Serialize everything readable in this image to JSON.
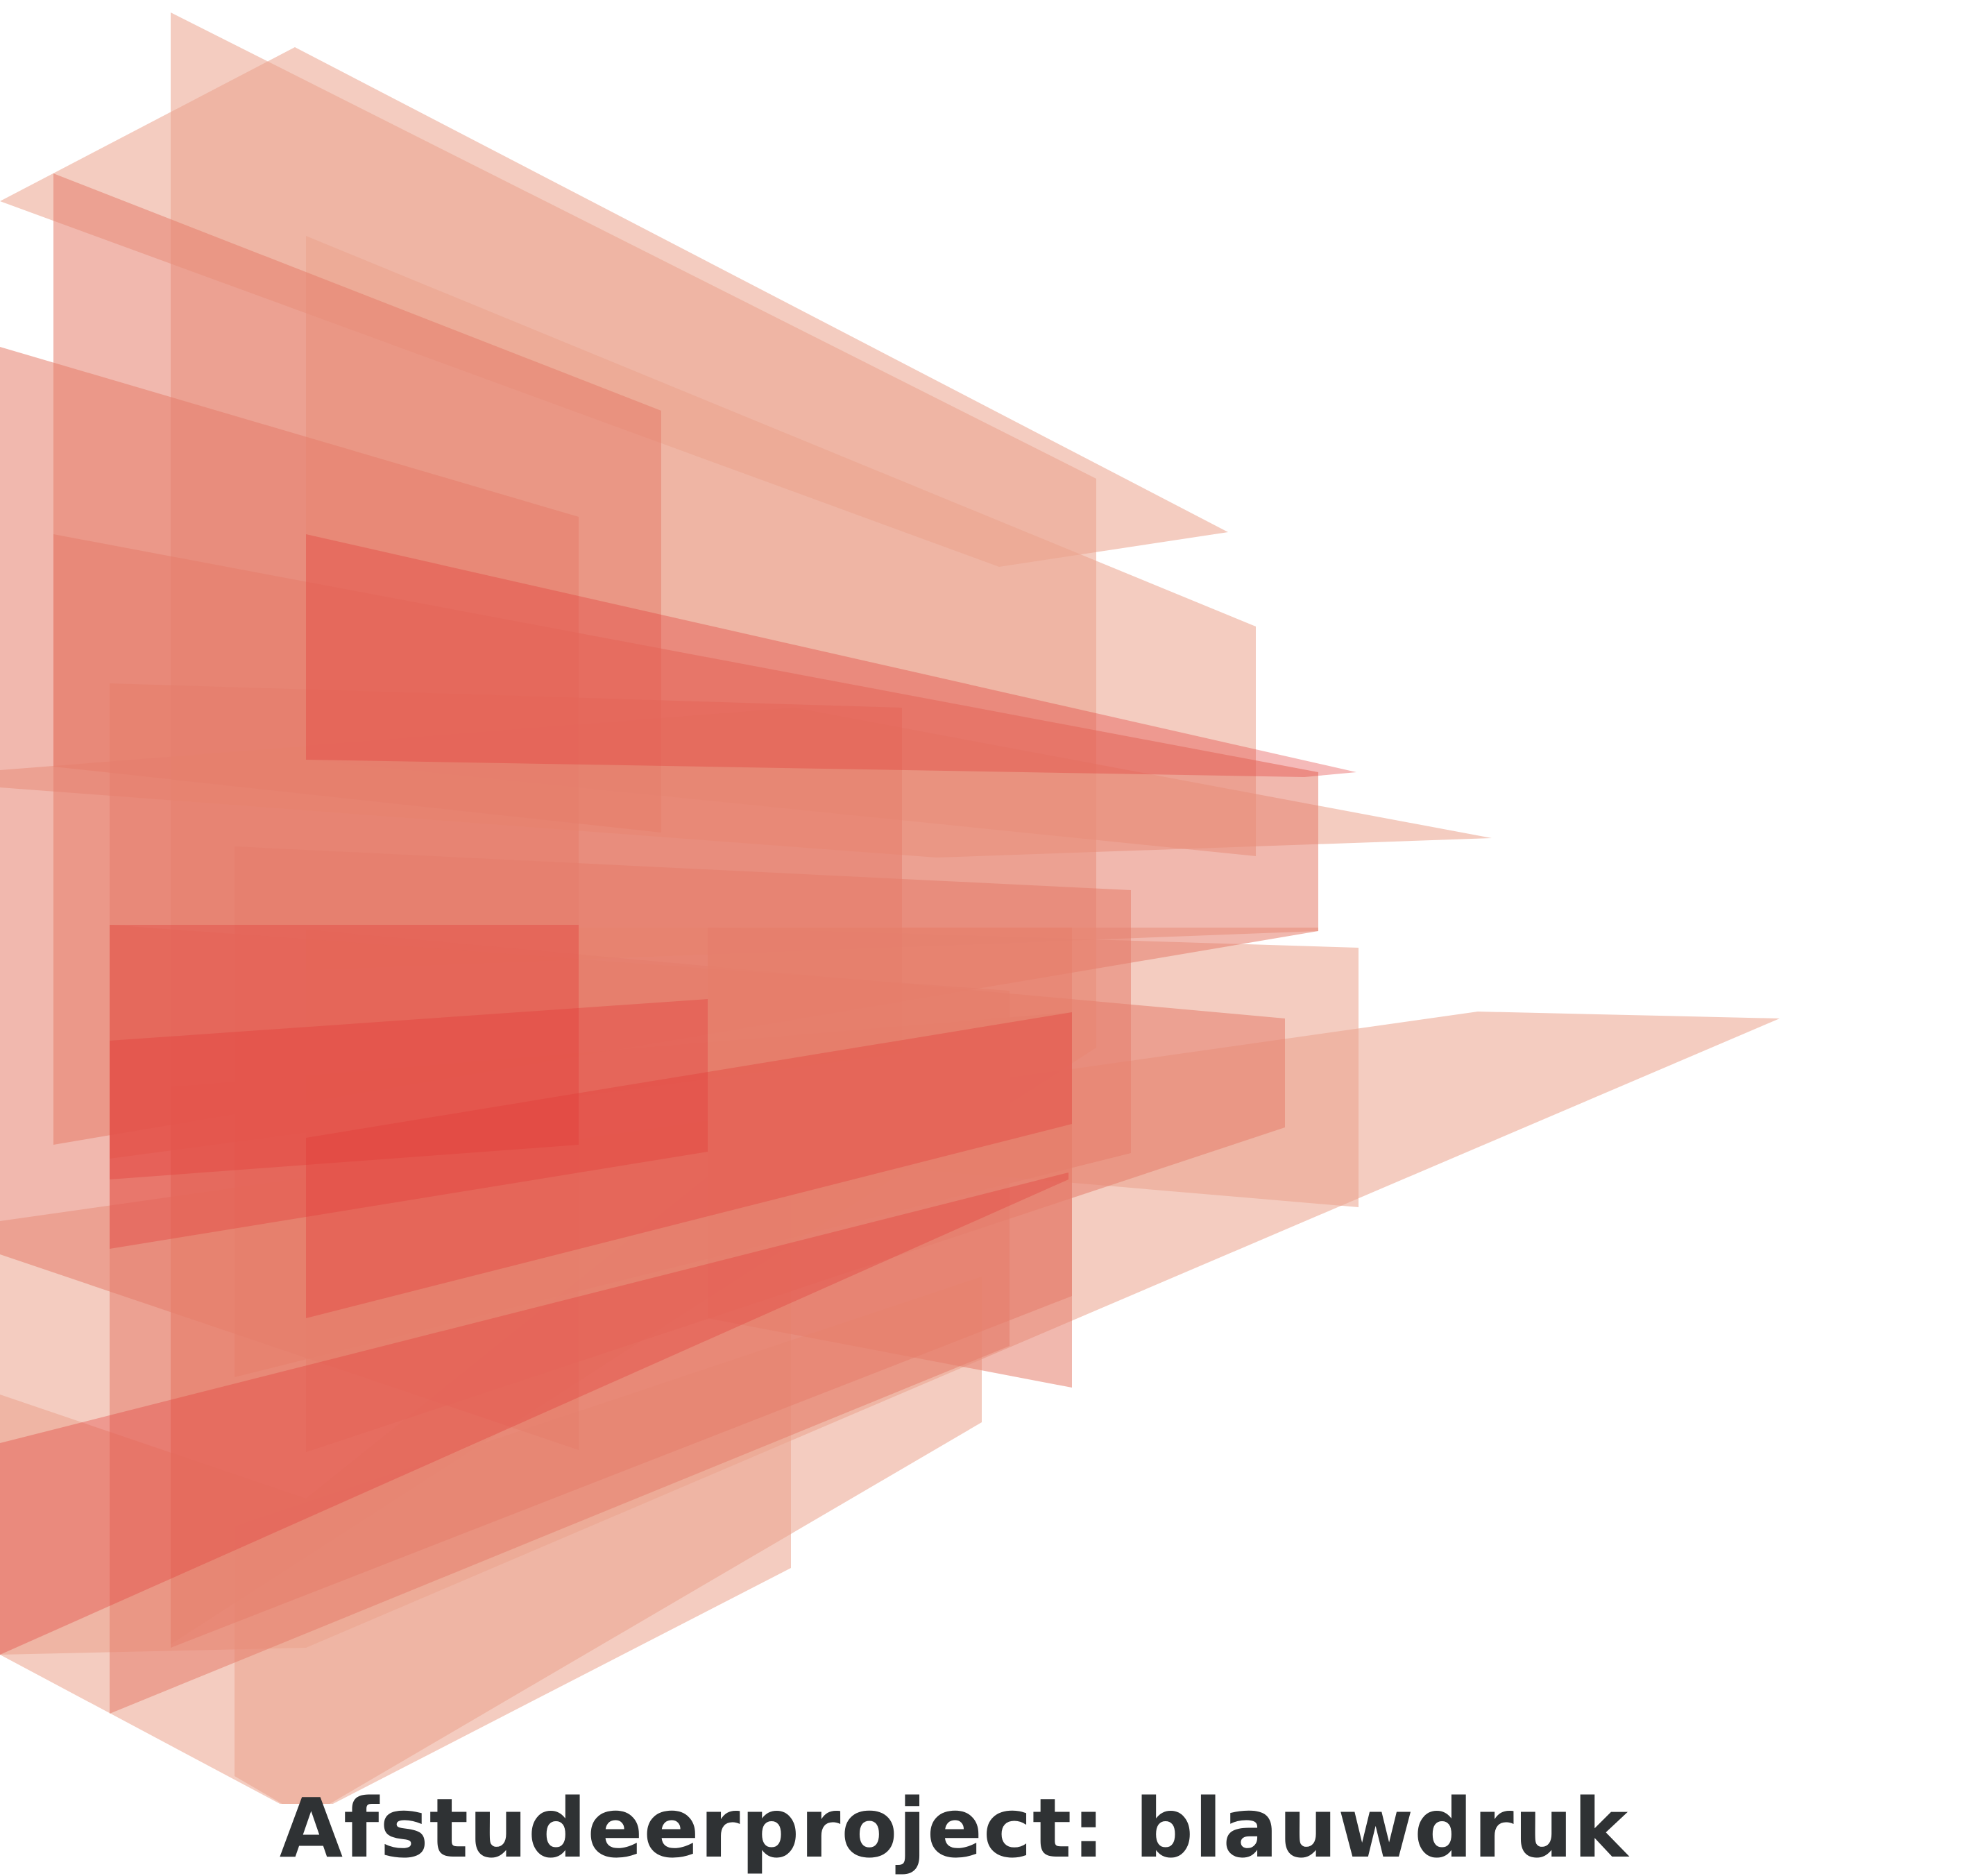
{
  "title": "Afstudeerproject: blauwdruk",
  "colors": {
    "plane_light": "#eba28d",
    "plane_mid": "#e57d6b",
    "plane_strong": "#e33a37",
    "title_text": "#2f3234",
    "background": "#ffffff"
  }
}
